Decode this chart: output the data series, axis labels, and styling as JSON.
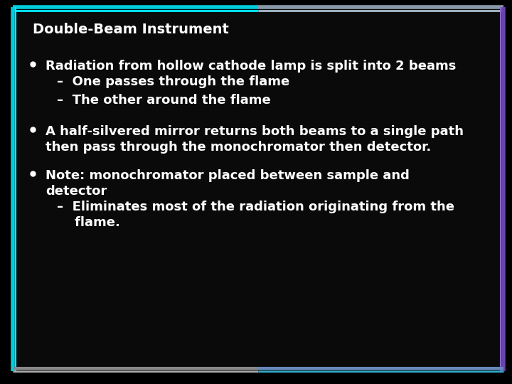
{
  "background_color": "#000000",
  "title": "Double-Beam Instrument",
  "title_color": "#ffffff",
  "title_fontsize": 14,
  "content_color": "#ffffff",
  "content_fontsize": 13,
  "slide_bg": "#0a0a0a",
  "border_top_color1": "#00cccc",
  "border_top_color2": "#8888aa",
  "border_left_color": "#00cccc",
  "border_right_color": "#7755bb",
  "border_bottom_color1": "#888888",
  "border_bottom_color2": "#5599cc",
  "lines": [
    {
      "type": "bullet",
      "text": "Radiation from hollow cathode lamp is split into 2 beams",
      "level": 0,
      "n_lines": 1
    },
    {
      "type": "sub",
      "text": "–  One passes through the flame",
      "level": 1,
      "n_lines": 1
    },
    {
      "type": "sub",
      "text": "–  The other around the flame",
      "level": 1,
      "n_lines": 1
    },
    {
      "type": "spacer",
      "text": "",
      "level": 0,
      "n_lines": 0
    },
    {
      "type": "bullet",
      "text": "A half-silvered mirror returns both beams to a single path\nthen pass through the monochromator then detector.",
      "level": 0,
      "n_lines": 2
    },
    {
      "type": "spacer",
      "text": "",
      "level": 0,
      "n_lines": 0
    },
    {
      "type": "bullet",
      "text": "Note: monochromator placed between sample and\ndetector",
      "level": 0,
      "n_lines": 2
    },
    {
      "type": "sub",
      "text": "–  Eliminates most of the radiation originating from the\n    flame.",
      "level": 1,
      "n_lines": 2
    }
  ]
}
